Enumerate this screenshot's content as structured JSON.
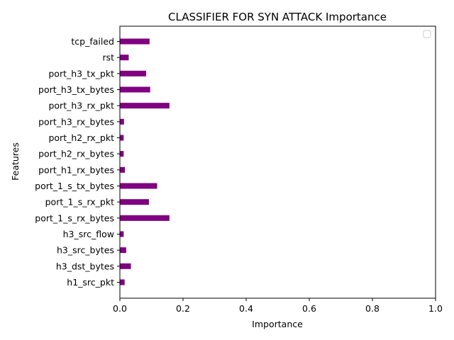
{
  "chart_data": {
    "type": "bar",
    "orientation": "horizontal",
    "title": "CLASSIFIER FOR SYN ATTACK Importance",
    "xlabel": "Importance",
    "ylabel": "Features",
    "xlim": [
      0,
      1
    ],
    "x_ticks": [
      "0.0",
      "0.2",
      "0.4",
      "0.6",
      "0.8",
      "1.0"
    ],
    "categories": [
      "h1_src_pkt",
      "h3_dst_bytes",
      "h3_src_bytes",
      "h3_src_flow",
      "port_1_s_rx_bytes",
      "port_1_s_rx_pkt",
      "port_1_s_tx_bytes",
      "port_h1_rx_bytes",
      "port_h2_rx_bytes",
      "port_h2_rx_pkt",
      "port_h3_rx_bytes",
      "port_h3_rx_pkt",
      "port_h3_tx_bytes",
      "port_h3_tx_pkt",
      "rst",
      "tcp_failed"
    ],
    "values": [
      0.015,
      0.035,
      0.02,
      0.012,
      0.157,
      0.092,
      0.118,
      0.016,
      0.012,
      0.012,
      0.013,
      0.157,
      0.096,
      0.083,
      0.028,
      0.094
    ],
    "bar_color": "#800080",
    "grid": false,
    "legend": "top-right",
    "legend_entries": []
  }
}
